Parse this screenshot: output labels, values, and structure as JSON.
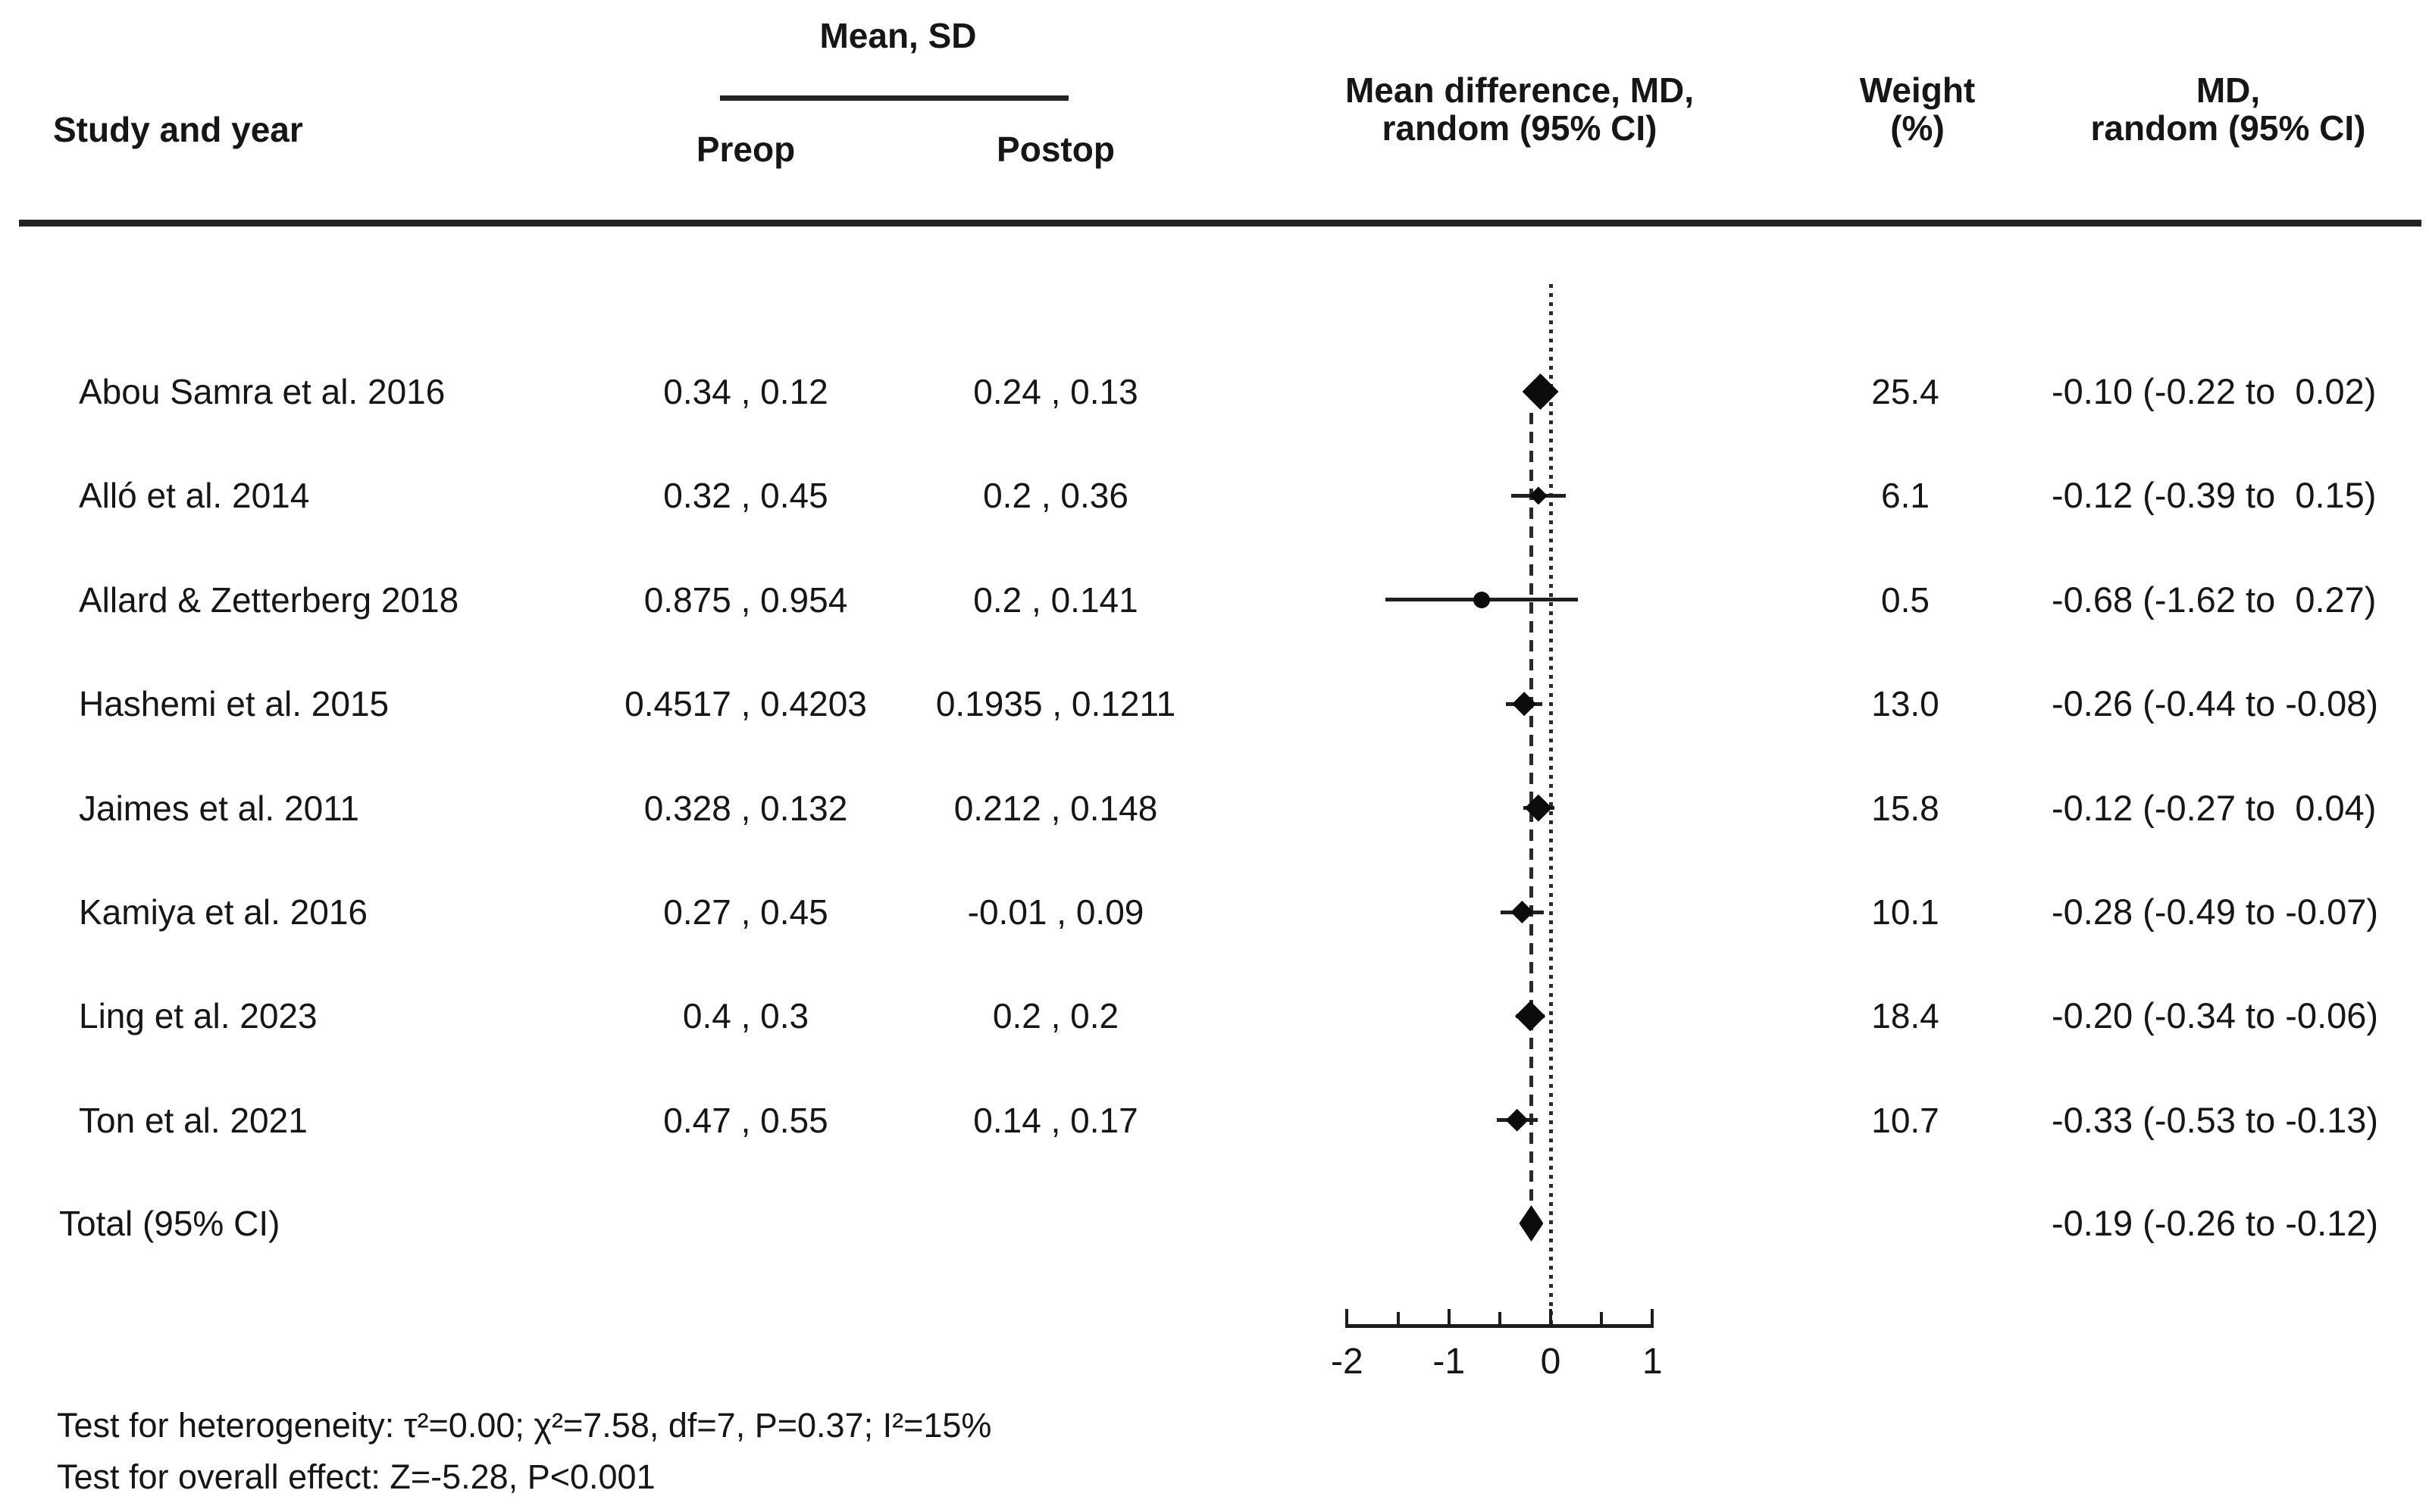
{
  "figure": {
    "headers": {
      "study": "Study and year",
      "mean_sd_group": "Mean, SD",
      "preop": "Preop",
      "postop": "Postop",
      "md_plot_line1": "Mean difference, MD,",
      "md_plot_line2": "random (95% CI)",
      "weight_line1": "Weight",
      "weight_line2": "(%)",
      "md_col_line1": "MD,",
      "md_col_line2": "random (95% CI)"
    },
    "footnotes": {
      "heterogeneity": "Test for heterogeneity: τ²=0.00; χ²=7.58, df=7, P=0.37; I²=15%",
      "overall_effect": "Test for overall effect: Z=-5.28, P<0.001"
    },
    "colors": {
      "text": "#161616",
      "marker": "#0c0c0c",
      "line": "#1c1c1c"
    }
  },
  "chart_data": {
    "type": "forest",
    "effect_measure": "Mean difference, MD, random (95% CI)",
    "xlim": [
      -2,
      1
    ],
    "zero_line": 0,
    "pooled_line": -0.19,
    "axis": {
      "major_ticks": [
        {
          "value": -2,
          "label": "-2"
        },
        {
          "value": -1,
          "label": "-1"
        },
        {
          "value": 0,
          "label": "0"
        },
        {
          "value": 1,
          "label": "1"
        }
      ],
      "minor_ticks": [
        -1.5,
        -0.5,
        0.5
      ]
    },
    "studies": [
      {
        "study": "Abou Samra et al. 2016",
        "preop": "0.34 , 0.12",
        "postop": "0.24 , 0.13",
        "md": -0.1,
        "lo": -0.22,
        "hi": 0.02,
        "weight": 25.4,
        "weight_text": "25.4",
        "md_text": "-0.10 (-0.22 to  0.02)",
        "marker": "diamond"
      },
      {
        "study": "Alló et al. 2014",
        "preop": "0.32 , 0.45",
        "postop": "0.2 , 0.36",
        "md": -0.12,
        "lo": -0.39,
        "hi": 0.15,
        "weight": 6.1,
        "weight_text": "6.1",
        "md_text": "-0.12 (-0.39 to  0.15)",
        "marker": "diamond"
      },
      {
        "study": "Allard & Zetterberg 2018",
        "preop": "0.875 , 0.954",
        "postop": "0.2 , 0.141",
        "md": -0.68,
        "lo": -1.62,
        "hi": 0.27,
        "weight": 0.5,
        "weight_text": "0.5",
        "md_text": "-0.68 (-1.62 to  0.27)",
        "marker": "circle"
      },
      {
        "study": "Hashemi et al. 2015",
        "preop": "0.4517 , 0.4203",
        "postop": "0.1935 , 0.1211",
        "md": -0.26,
        "lo": -0.44,
        "hi": -0.08,
        "weight": 13.0,
        "weight_text": "13.0",
        "md_text": "-0.26 (-0.44 to -0.08)",
        "marker": "diamond"
      },
      {
        "study": "Jaimes et al. 2011",
        "preop": "0.328 , 0.132",
        "postop": "0.212 , 0.148",
        "md": -0.12,
        "lo": -0.27,
        "hi": 0.04,
        "weight": 15.8,
        "weight_text": "15.8",
        "md_text": "-0.12 (-0.27 to  0.04)",
        "marker": "diamond"
      },
      {
        "study": "Kamiya et al. 2016",
        "preop": "0.27 , 0.45",
        "postop": "-0.01 , 0.09",
        "md": -0.28,
        "lo": -0.49,
        "hi": -0.07,
        "weight": 10.1,
        "weight_text": "10.1",
        "md_text": "-0.28 (-0.49 to -0.07)",
        "marker": "diamond"
      },
      {
        "study": "Ling et al. 2023",
        "preop": "0.4 , 0.3",
        "postop": "0.2 , 0.2",
        "md": -0.2,
        "lo": -0.34,
        "hi": -0.06,
        "weight": 18.4,
        "weight_text": "18.4",
        "md_text": "-0.20 (-0.34 to -0.06)",
        "marker": "diamond"
      },
      {
        "study": "Ton et al. 2021",
        "preop": "0.47 , 0.55",
        "postop": "0.14 , 0.17",
        "md": -0.33,
        "lo": -0.53,
        "hi": -0.13,
        "weight": 10.7,
        "weight_text": "10.7",
        "md_text": "-0.33 (-0.53 to -0.13)",
        "marker": "diamond"
      }
    ],
    "total": {
      "label": "Total (95% CI)",
      "md": -0.19,
      "lo": -0.26,
      "hi": -0.12,
      "md_text": "-0.19 (-0.26 to -0.12)"
    }
  }
}
